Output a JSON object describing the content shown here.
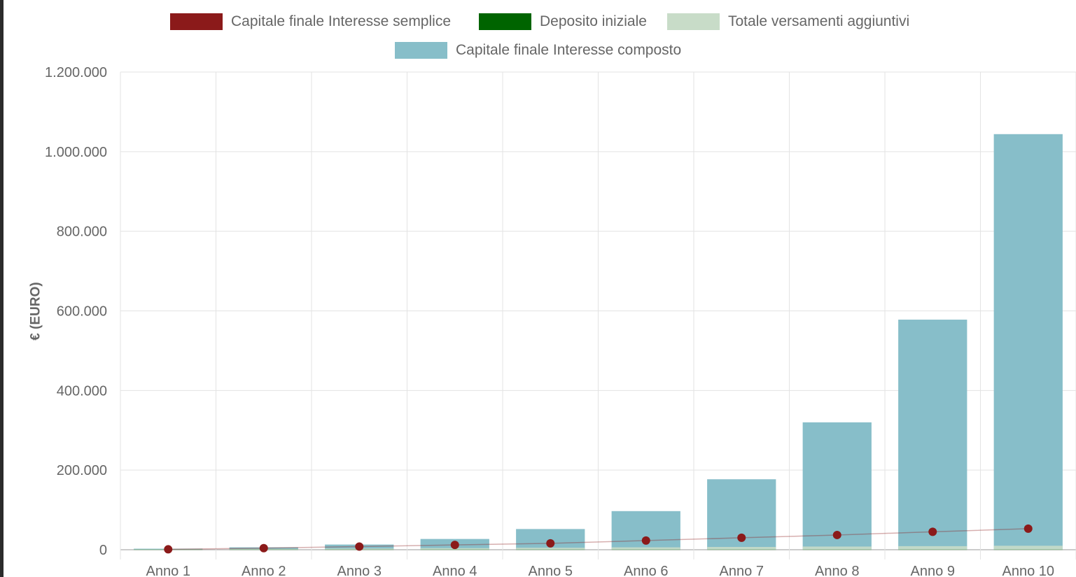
{
  "chart_data": {
    "type": "bar",
    "categories": [
      "Anno 1",
      "Anno 2",
      "Anno 3",
      "Anno 4",
      "Anno 5",
      "Anno 6",
      "Anno 7",
      "Anno 8",
      "Anno 9",
      "Anno 10"
    ],
    "ylabel": "€ (EURO)",
    "ylim": [
      0,
      1200000
    ],
    "yticks": [
      0,
      200000,
      400000,
      600000,
      800000,
      1000000,
      1200000
    ],
    "ytick_labels": [
      "0",
      "200.000",
      "400.000",
      "600.000",
      "800.000",
      "1.000.000",
      "1.200.000"
    ],
    "grid": true,
    "legend_position": "top",
    "series": [
      {
        "name": "Capitale finale Interesse semplice",
        "kind": "line-points",
        "color": "#8b1a1a",
        "values": [
          1000,
          4000,
          8000,
          12000,
          16000,
          23000,
          30000,
          37000,
          45000,
          53000
        ]
      },
      {
        "name": "Deposito iniziale",
        "kind": "bar",
        "color": "#006400",
        "values": [
          500,
          500,
          500,
          500,
          500,
          500,
          500,
          500,
          500,
          500
        ]
      },
      {
        "name": "Totale versamenti aggiuntivi",
        "kind": "bar",
        "color": "#c8dcc8",
        "values": [
          1000,
          2000,
          3000,
          4000,
          5000,
          6000,
          7000,
          8000,
          9000,
          10000
        ]
      },
      {
        "name": "Capitale finale Interesse composto",
        "kind": "bar",
        "color": "#87bec9",
        "values": [
          2500,
          6000,
          13000,
          27000,
          52000,
          97000,
          177000,
          320000,
          578000,
          1044000
        ]
      }
    ]
  }
}
